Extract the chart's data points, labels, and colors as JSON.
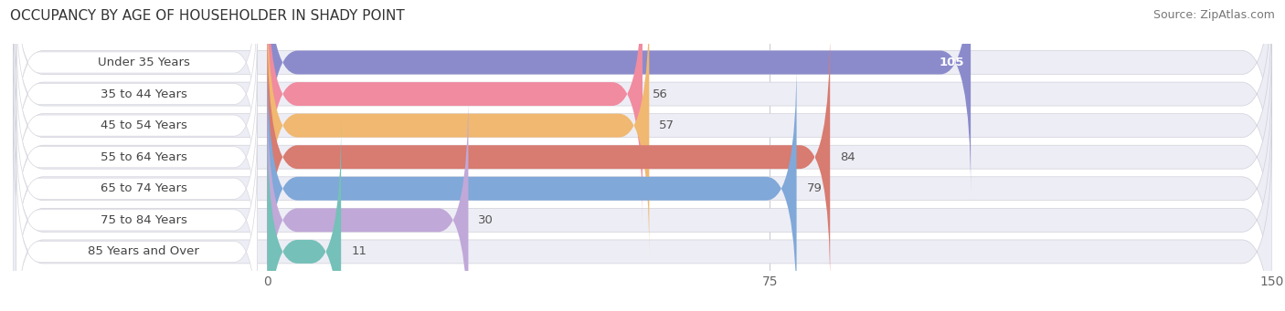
{
  "title": "OCCUPANCY BY AGE OF HOUSEHOLDER IN SHADY POINT",
  "source": "Source: ZipAtlas.com",
  "categories": [
    "Under 35 Years",
    "35 to 44 Years",
    "45 to 54 Years",
    "55 to 64 Years",
    "65 to 74 Years",
    "75 to 84 Years",
    "85 Years and Over"
  ],
  "values": [
    105,
    56,
    57,
    84,
    79,
    30,
    11
  ],
  "bar_colors": [
    "#8b8bcc",
    "#f08ba0",
    "#f0b870",
    "#d87b70",
    "#80a8d8",
    "#c0a8d8",
    "#75c0b8"
  ],
  "bar_bg_color": "#ededf5",
  "xlim_max": 150,
  "xticks": [
    0,
    75,
    150
  ],
  "title_fontsize": 11,
  "source_fontsize": 9,
  "tick_fontsize": 10,
  "bar_label_fontsize": 9.5,
  "category_fontsize": 9.5,
  "inside_label_threshold": 100
}
